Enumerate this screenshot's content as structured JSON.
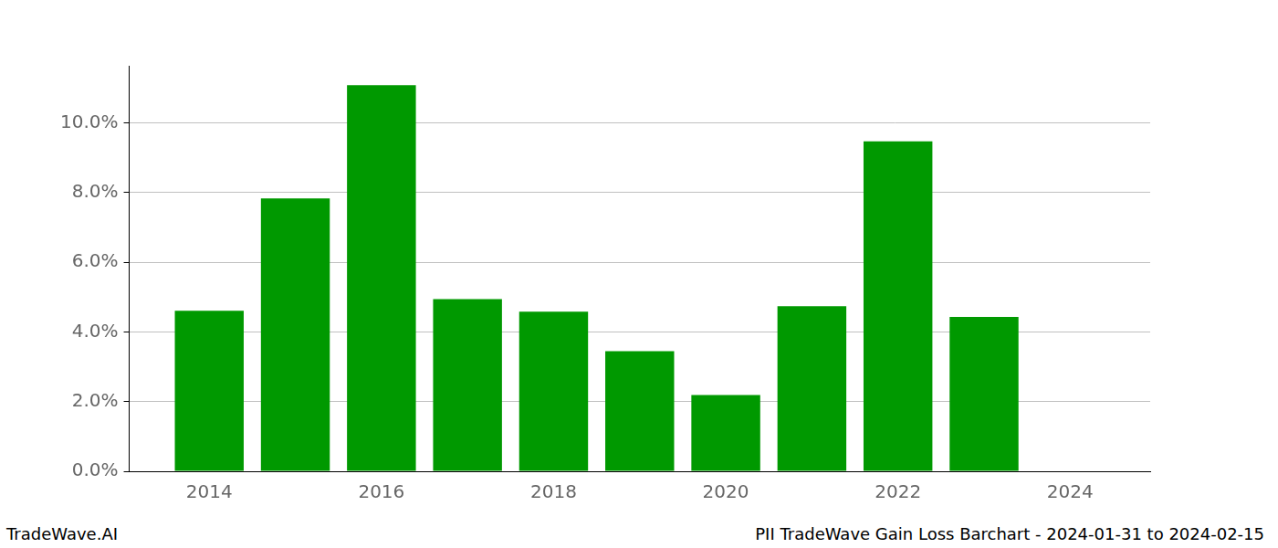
{
  "chart_data": {
    "type": "bar",
    "x": [
      2014,
      2015,
      2016,
      2017,
      2018,
      2019,
      2020,
      2021,
      2022,
      2023
    ],
    "values": [
      4.61,
      7.83,
      11.08,
      4.94,
      4.58,
      3.45,
      2.19,
      4.74,
      9.47,
      4.43
    ],
    "color": "#009900",
    "xlim": [
      2013.07,
      2024.93
    ],
    "xticks": [
      2014,
      2016,
      2018,
      2020,
      2022,
      2024
    ],
    "ylim": [
      0,
      11.64
    ],
    "yticks": [
      {
        "value": 0,
        "label": "0.0%"
      },
      {
        "value": 2,
        "label": "2.0%"
      },
      {
        "value": 4,
        "label": "4.0%"
      },
      {
        "value": 6,
        "label": "6.0%"
      },
      {
        "value": 8,
        "label": "8.0%"
      },
      {
        "value": 10,
        "label": "10.0%"
      }
    ],
    "grid": true,
    "annotations": [
      "TradeWave.AI",
      "PII TradeWave Gain Loss Barchart - 2024-01-31 to 2024-02-15"
    ]
  }
}
